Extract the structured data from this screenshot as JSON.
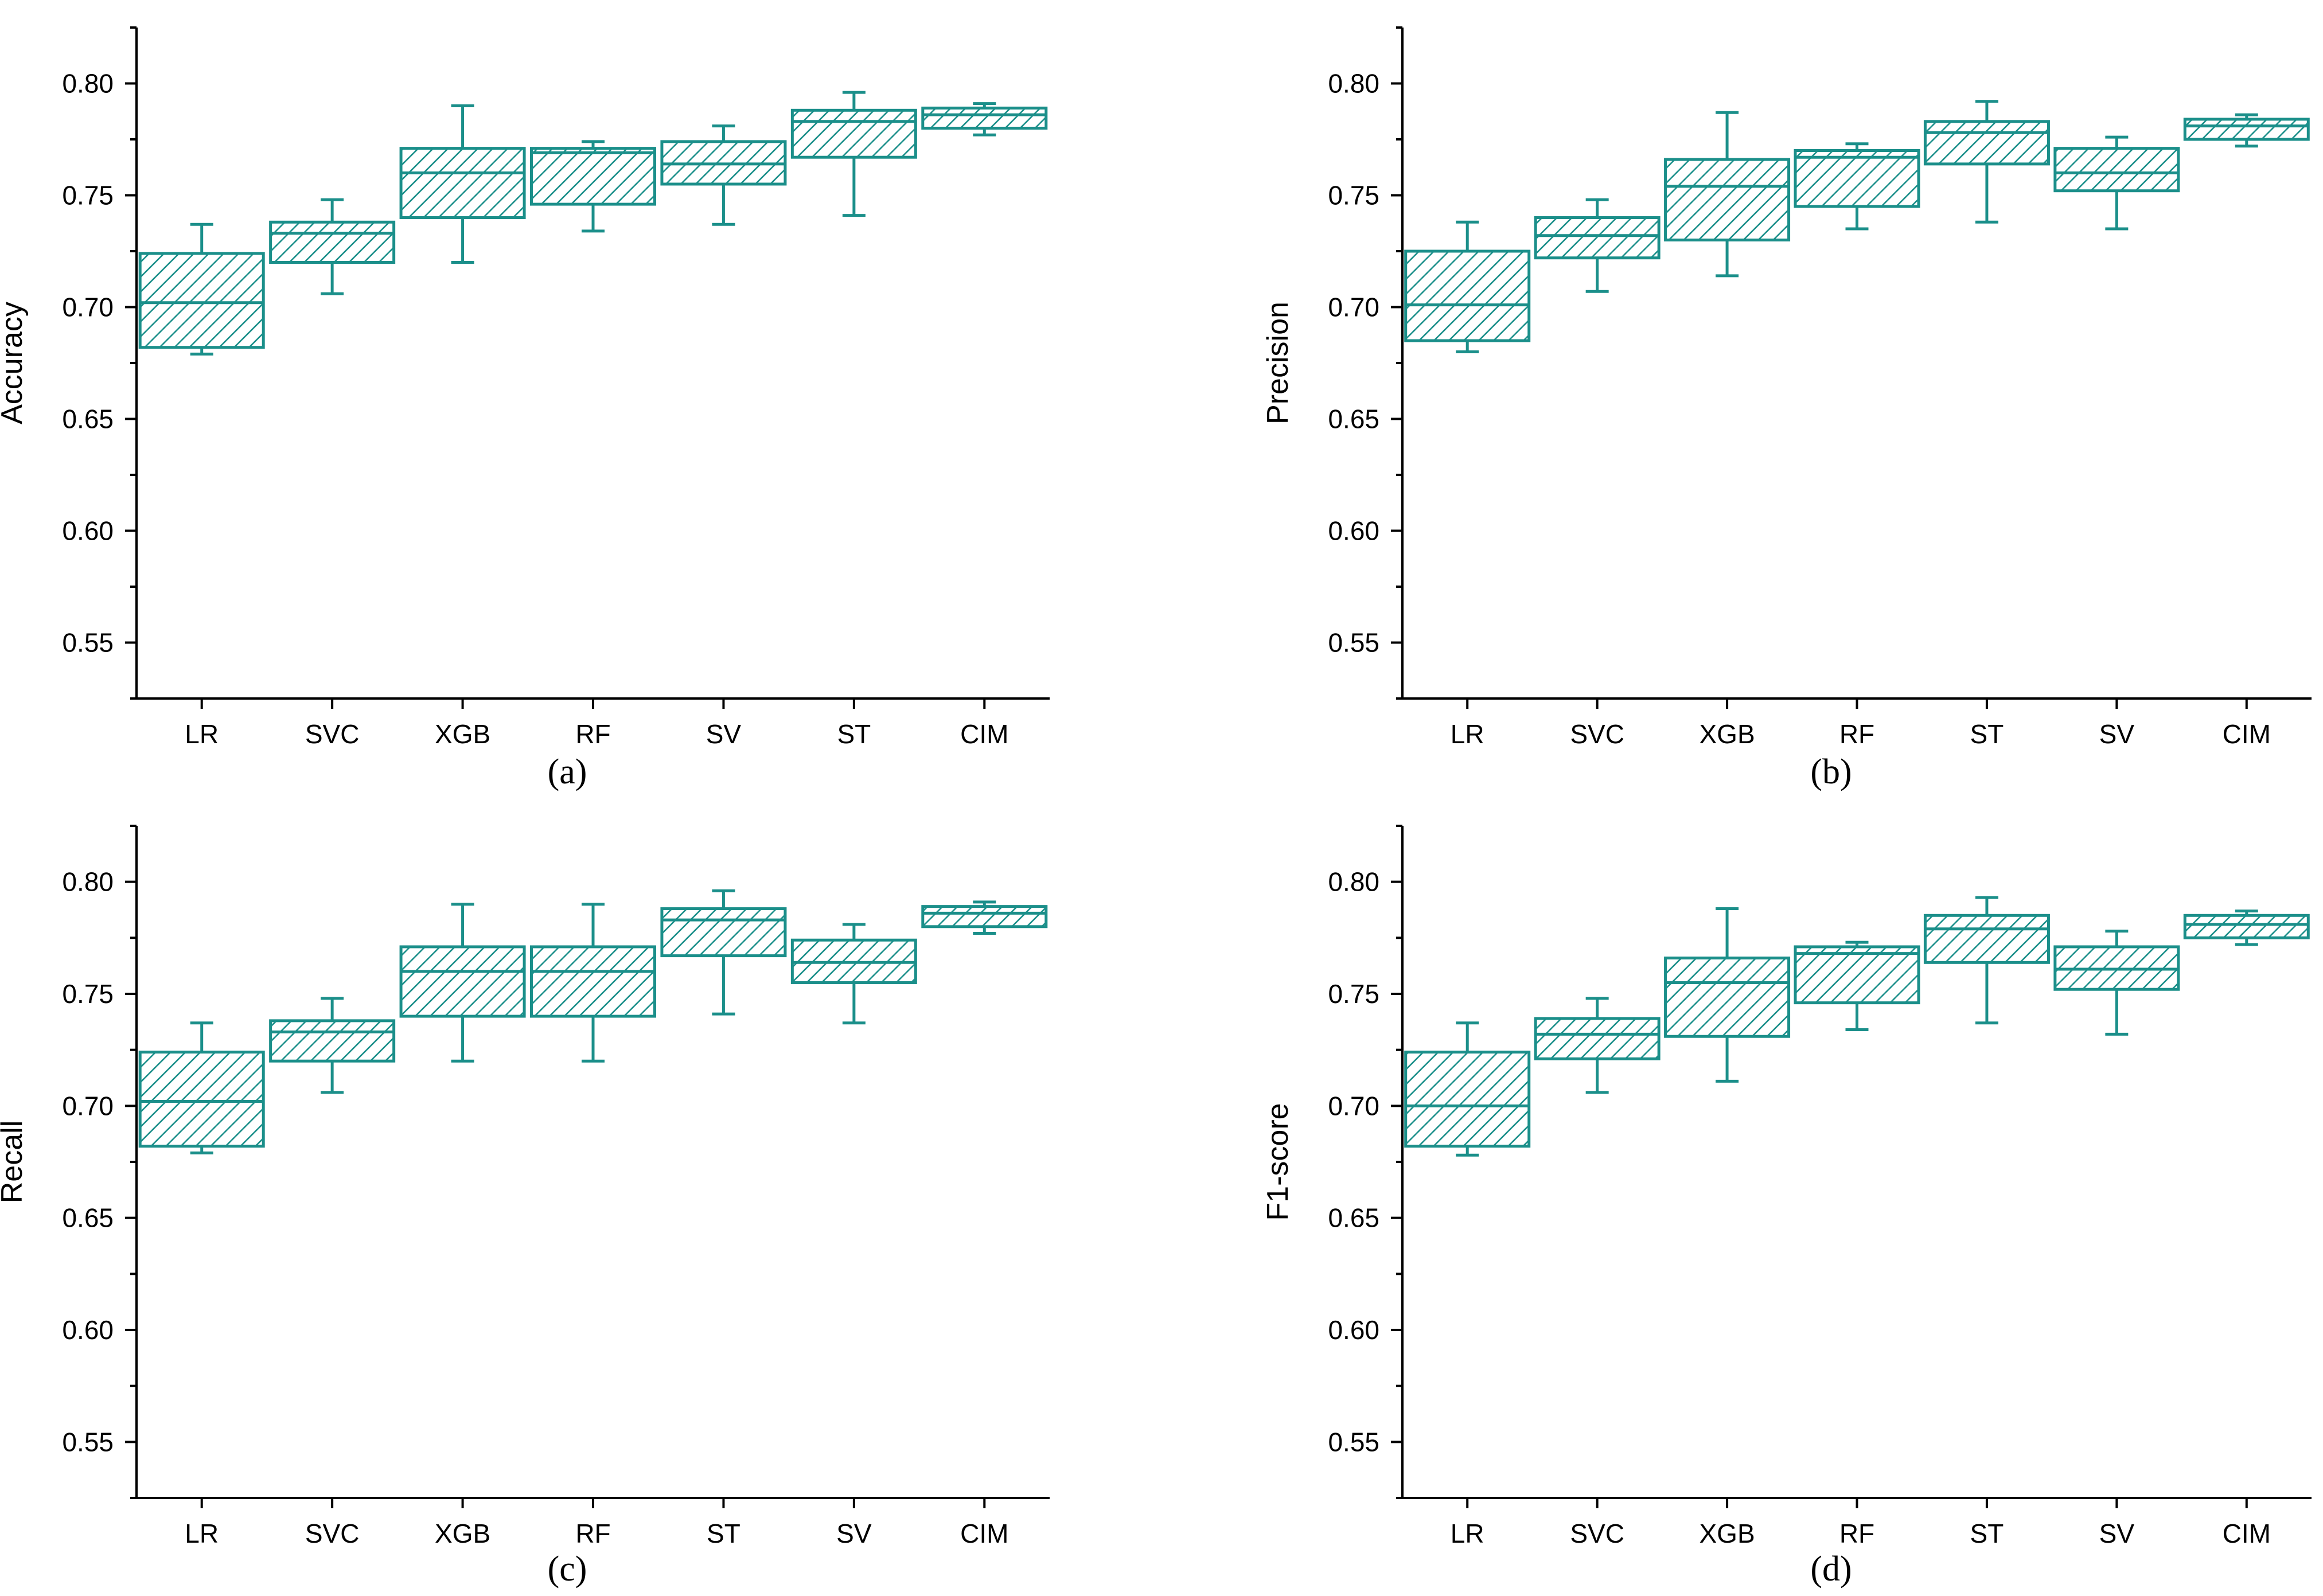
{
  "colors": {
    "box": "#1b8f8a",
    "axis": "#000000"
  },
  "chart_data": [
    {
      "type": "box",
      "panel": "a",
      "caption": "(a)",
      "ylabel": "Accuracy",
      "xlabel": "",
      "ylim": [
        0.525,
        0.825
      ],
      "yticks": [
        "0.55",
        "0.60",
        "0.65",
        "0.70",
        "0.75",
        "0.80"
      ],
      "categories": [
        "LR",
        "SVC",
        "XGB",
        "RF",
        "SV",
        "ST",
        "CIM"
      ],
      "boxes": [
        {
          "min": 0.679,
          "q1": 0.682,
          "median": 0.702,
          "q3": 0.724,
          "max": 0.737
        },
        {
          "min": 0.706,
          "q1": 0.72,
          "median": 0.733,
          "q3": 0.738,
          "max": 0.748
        },
        {
          "min": 0.72,
          "q1": 0.74,
          "median": 0.76,
          "q3": 0.771,
          "max": 0.79
        },
        {
          "min": 0.734,
          "q1": 0.746,
          "median": 0.769,
          "q3": 0.771,
          "max": 0.774
        },
        {
          "min": 0.737,
          "q1": 0.755,
          "median": 0.764,
          "q3": 0.774,
          "max": 0.781
        },
        {
          "min": 0.741,
          "q1": 0.767,
          "median": 0.783,
          "q3": 0.788,
          "max": 0.796
        },
        {
          "min": 0.777,
          "q1": 0.78,
          "median": 0.786,
          "q3": 0.789,
          "max": 0.791
        }
      ]
    },
    {
      "type": "box",
      "panel": "b",
      "caption": "(b)",
      "ylabel": "Precision",
      "xlabel": "",
      "ylim": [
        0.525,
        0.825
      ],
      "yticks": [
        "0.55",
        "0.60",
        "0.65",
        "0.70",
        "0.75",
        "0.80"
      ],
      "categories": [
        "LR",
        "SVC",
        "XGB",
        "RF",
        "ST",
        "SV",
        "CIM"
      ],
      "boxes": [
        {
          "min": 0.68,
          "q1": 0.685,
          "median": 0.701,
          "q3": 0.725,
          "max": 0.738
        },
        {
          "min": 0.707,
          "q1": 0.722,
          "median": 0.732,
          "q3": 0.74,
          "max": 0.748
        },
        {
          "min": 0.714,
          "q1": 0.73,
          "median": 0.754,
          "q3": 0.766,
          "max": 0.787
        },
        {
          "min": 0.735,
          "q1": 0.745,
          "median": 0.767,
          "q3": 0.77,
          "max": 0.773
        },
        {
          "min": 0.738,
          "q1": 0.764,
          "median": 0.778,
          "q3": 0.783,
          "max": 0.792
        },
        {
          "min": 0.735,
          "q1": 0.752,
          "median": 0.76,
          "q3": 0.771,
          "max": 0.776
        },
        {
          "min": 0.772,
          "q1": 0.775,
          "median": 0.781,
          "q3": 0.784,
          "max": 0.786
        }
      ]
    },
    {
      "type": "box",
      "panel": "c",
      "caption": "(c)",
      "ylabel": "Recall",
      "xlabel": "",
      "ylim": [
        0.525,
        0.825
      ],
      "yticks": [
        "0.55",
        "0.60",
        "0.65",
        "0.70",
        "0.75",
        "0.80"
      ],
      "categories": [
        "LR",
        "SVC",
        "XGB",
        "RF",
        "ST",
        "SV",
        "CIM"
      ],
      "boxes": [
        {
          "min": 0.679,
          "q1": 0.682,
          "median": 0.702,
          "q3": 0.724,
          "max": 0.737
        },
        {
          "min": 0.706,
          "q1": 0.72,
          "median": 0.733,
          "q3": 0.738,
          "max": 0.748
        },
        {
          "min": 0.72,
          "q1": 0.74,
          "median": 0.76,
          "q3": 0.771,
          "max": 0.79
        },
        {
          "min": 0.72,
          "q1": 0.74,
          "median": 0.76,
          "q3": 0.771,
          "max": 0.79
        },
        {
          "min": 0.741,
          "q1": 0.767,
          "median": 0.783,
          "q3": 0.788,
          "max": 0.796
        },
        {
          "min": 0.737,
          "q1": 0.755,
          "median": 0.764,
          "q3": 0.774,
          "max": 0.781
        },
        {
          "min": 0.777,
          "q1": 0.78,
          "median": 0.786,
          "q3": 0.789,
          "max": 0.791
        }
      ]
    },
    {
      "type": "box",
      "panel": "d",
      "caption": "(d)",
      "ylabel": "F1-score",
      "xlabel": "",
      "ylim": [
        0.525,
        0.825
      ],
      "yticks": [
        "0.55",
        "0.60",
        "0.65",
        "0.70",
        "0.75",
        "0.80"
      ],
      "categories": [
        "LR",
        "SVC",
        "XGB",
        "RF",
        "ST",
        "SV",
        "CIM"
      ],
      "boxes": [
        {
          "min": 0.678,
          "q1": 0.682,
          "median": 0.7,
          "q3": 0.724,
          "max": 0.737
        },
        {
          "min": 0.706,
          "q1": 0.721,
          "median": 0.732,
          "q3": 0.739,
          "max": 0.748
        },
        {
          "min": 0.711,
          "q1": 0.731,
          "median": 0.755,
          "q3": 0.766,
          "max": 0.788
        },
        {
          "min": 0.734,
          "q1": 0.746,
          "median": 0.768,
          "q3": 0.771,
          "max": 0.773
        },
        {
          "min": 0.737,
          "q1": 0.764,
          "median": 0.779,
          "q3": 0.785,
          "max": 0.793
        },
        {
          "min": 0.732,
          "q1": 0.752,
          "median": 0.761,
          "q3": 0.771,
          "max": 0.778
        },
        {
          "min": 0.772,
          "q1": 0.775,
          "median": 0.781,
          "q3": 0.785,
          "max": 0.787
        }
      ]
    }
  ]
}
